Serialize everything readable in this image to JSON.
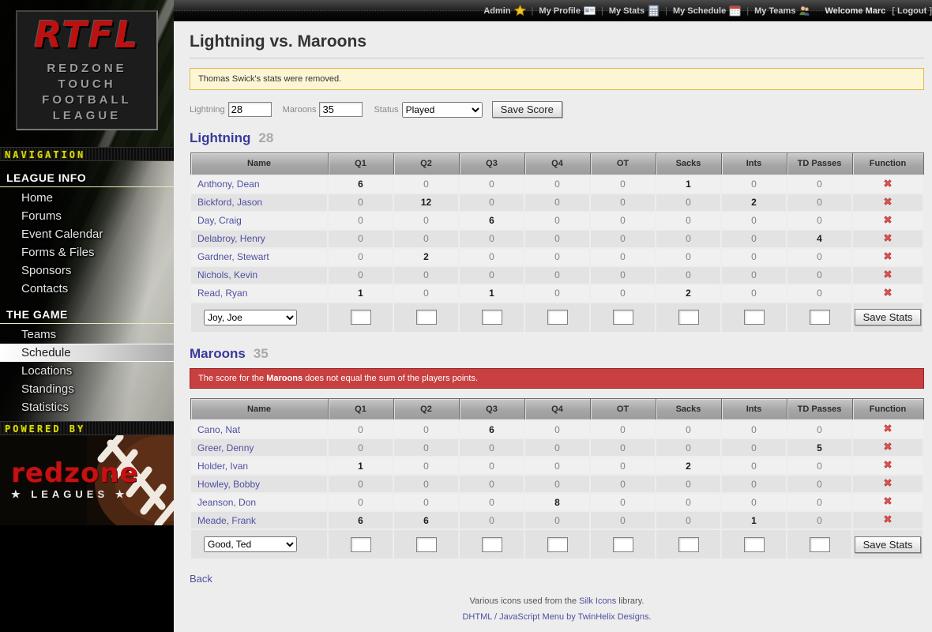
{
  "colors": {
    "accent_red": "#c84040",
    "notice_bg": "#fdf6d5",
    "notice_border": "#e0b94e",
    "link": "#4f4fa0",
    "team_heading": "#39399b",
    "logo_red": "#bb1111"
  },
  "topbar": {
    "menu": [
      {
        "label": "Admin",
        "icon": "star-icon"
      },
      {
        "label": "My Profile",
        "icon": "vcard-icon"
      },
      {
        "label": "My Stats",
        "icon": "calculator-icon"
      },
      {
        "label": "My Schedule",
        "icon": "calendar-icon"
      },
      {
        "label": "My Teams",
        "icon": "group-icon"
      }
    ],
    "welcome": "Welcome Marc",
    "logout_label": "Logout"
  },
  "sidebar": {
    "logo": {
      "abbr": "RTFL",
      "lines": [
        "REDZONE",
        "TOUCH",
        "FOOTBALL",
        "LEAGUE"
      ]
    },
    "navigation_label": "NAVIGATION",
    "sections": [
      {
        "title": "LEAGUE INFO",
        "items": [
          "Home",
          "Forums",
          "Event Calendar",
          "Forms & Files",
          "Sponsors",
          "Contacts"
        ],
        "active": ""
      },
      {
        "title": "THE GAME",
        "items": [
          "Teams",
          "Schedule",
          "Locations",
          "Standings",
          "Statistics"
        ],
        "active": "Schedule"
      }
    ],
    "powered_by_label": "POWERED BY",
    "powered_logo": {
      "name": "redzone",
      "sub": "LEAGUES"
    }
  },
  "page": {
    "title": "Lightning vs. Maroons",
    "notice": "Thomas Swick's stats were removed.",
    "score_form": {
      "home_label": "Lightning",
      "home_value": "28",
      "away_label": "Maroons",
      "away_value": "35",
      "status_label": "Status",
      "status_value": "Played",
      "save_label": "Save Score"
    },
    "columns": [
      "Name",
      "Q1",
      "Q2",
      "Q3",
      "Q4",
      "OT",
      "Sacks",
      "Ints",
      "TD Passes",
      "Function"
    ],
    "teams": [
      {
        "name": "Lightning",
        "score": "28",
        "error": null,
        "players": [
          {
            "name": "Anthony, Dean",
            "stats": [
              6,
              0,
              0,
              0,
              0,
              1,
              0,
              0
            ]
          },
          {
            "name": "Bickford, Jason",
            "stats": [
              0,
              12,
              0,
              0,
              0,
              0,
              2,
              0
            ]
          },
          {
            "name": "Day, Craig",
            "stats": [
              0,
              0,
              6,
              0,
              0,
              0,
              0,
              0
            ]
          },
          {
            "name": "Delabroy, Henry",
            "stats": [
              0,
              0,
              0,
              0,
              0,
              0,
              0,
              4
            ]
          },
          {
            "name": "Gardner, Stewart",
            "stats": [
              0,
              2,
              0,
              0,
              0,
              0,
              0,
              0
            ]
          },
          {
            "name": "Nichols, Kevin",
            "stats": [
              0,
              0,
              0,
              0,
              0,
              0,
              0,
              0
            ]
          },
          {
            "name": "Read, Ryan",
            "stats": [
              1,
              0,
              1,
              0,
              0,
              2,
              0,
              0
            ]
          }
        ],
        "add_player_selected": "Joy, Joe",
        "save_stats_label": "Save Stats"
      },
      {
        "name": "Maroons",
        "score": "35",
        "error": {
          "prefix": "The score for the ",
          "bold": "Maroons",
          "suffix": " does not equal the sum of the players points."
        },
        "players": [
          {
            "name": "Cano, Nat",
            "stats": [
              0,
              0,
              6,
              0,
              0,
              0,
              0,
              0
            ]
          },
          {
            "name": "Greer, Denny",
            "stats": [
              0,
              0,
              0,
              0,
              0,
              0,
              0,
              5
            ]
          },
          {
            "name": "Holder, Ivan",
            "stats": [
              1,
              0,
              0,
              0,
              0,
              2,
              0,
              0
            ]
          },
          {
            "name": "Howley, Bobby",
            "stats": [
              0,
              0,
              0,
              0,
              0,
              0,
              0,
              0
            ]
          },
          {
            "name": "Jeanson, Don",
            "stats": [
              0,
              0,
              0,
              8,
              0,
              0,
              0,
              0
            ]
          },
          {
            "name": "Meade, Frank",
            "stats": [
              6,
              6,
              0,
              0,
              0,
              0,
              1,
              0
            ]
          }
        ],
        "add_player_selected": "Good, Ted",
        "save_stats_label": "Save Stats"
      }
    ],
    "back_label": "Back"
  },
  "footer": {
    "line1_prefix": "Various icons used from the ",
    "line1_link": "Silk Icons",
    "line1_suffix": " library.",
    "line2_link": "DHTML / JavaScript Menu by TwinHelix Designs",
    "line2_suffix": "."
  }
}
